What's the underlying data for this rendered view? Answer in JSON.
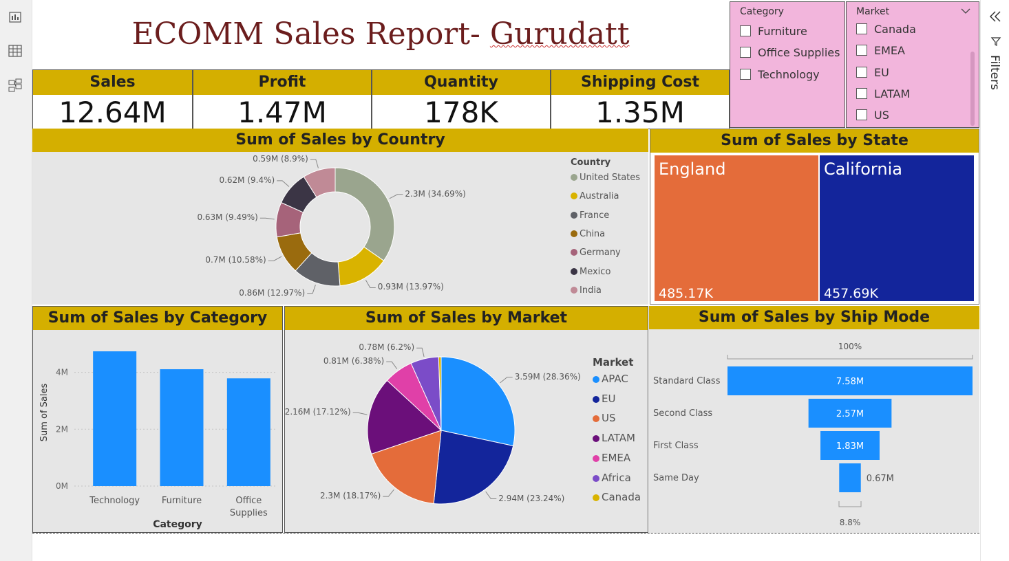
{
  "title": {
    "main": "ECOMM Sales Report- ",
    "name": "Gurudatt"
  },
  "kpis": [
    {
      "label": "Sales",
      "value": "12.64M"
    },
    {
      "label": "Profit",
      "value": "1.47M"
    },
    {
      "label": "Quantity",
      "value": "178K"
    },
    {
      "label": "Shipping Cost",
      "value": "1.35M"
    }
  ],
  "category_slicer": {
    "label": "Category",
    "options": [
      "Furniture",
      "Office Supplies",
      "Technology"
    ]
  },
  "market_slicer": {
    "label": "Market",
    "options": [
      "Canada",
      "EMEA",
      "EU",
      "LATAM",
      "US"
    ]
  },
  "right_rail": {
    "filters_label": "Filters"
  },
  "icons": {
    "left_rail": [
      "report-view-icon",
      "data-view-icon",
      "model-view-icon"
    ],
    "right_rail": [
      "collapse-chevrons-icon",
      "filter-funnel-icon"
    ]
  },
  "chart_data": [
    {
      "type": "pie",
      "title": "Sum of Sales by Country",
      "legend_title": "Country",
      "legend_position": "right",
      "donut": true,
      "categories": [
        "United States",
        "Australia",
        "France",
        "China",
        "Germany",
        "Mexico",
        "India"
      ],
      "values": [
        2.3,
        0.93,
        0.86,
        0.7,
        0.63,
        0.62,
        0.59
      ],
      "labels": [
        "2.3M (34.69%)",
        "0.93M (13.97%)",
        "0.86M (12.97%)",
        "0.7M (10.58%)",
        "0.63M (9.49%)",
        "0.62M (9.4%)",
        "0.59M (8.9%)"
      ],
      "colors": [
        "#9aa58e",
        "#d9b300",
        "#5f6167",
        "#9a6b0e",
        "#a6637a",
        "#3b3545",
        "#c08a96"
      ]
    },
    {
      "type": "treemap",
      "title": "Sum of Sales by State",
      "categories": [
        "England",
        "California"
      ],
      "labels": [
        "485.17K",
        "457.69K"
      ],
      "values": [
        485.17,
        457.69
      ],
      "colors": [
        "#e46c3a",
        "#13259b"
      ]
    },
    {
      "type": "bar",
      "title": "Sum of Sales by Category",
      "xlabel": "Category",
      "ylabel": "Sum of Sales",
      "categories": [
        "Technology",
        "Furniture",
        "Office Supplies"
      ],
      "values": [
        4.74,
        4.11,
        3.79
      ],
      "ylim": [
        0,
        5.2
      ],
      "yticks": [
        "0M",
        "2M",
        "4M"
      ],
      "grid": true,
      "color": "#1a8fff"
    },
    {
      "type": "pie",
      "title": "Sum of Sales by Market",
      "legend_title": "Market",
      "legend_position": "right",
      "categories": [
        "APAC",
        "EU",
        "US",
        "LATAM",
        "EMEA",
        "Africa",
        "Canada"
      ],
      "values": [
        3.59,
        2.94,
        2.3,
        2.16,
        0.81,
        0.78,
        0.07
      ],
      "labels": [
        "3.59M (28.36%)",
        "2.94M (23.24%)",
        "2.3M (18.17%)",
        "2.16M (17.12%)",
        "0.81M (6.38%)",
        "0.78M (6.2%)",
        ""
      ],
      "colors": [
        "#1a8fff",
        "#13259b",
        "#e46c3a",
        "#6b0f7a",
        "#e040a8",
        "#7b4cc8",
        "#d9b300"
      ]
    },
    {
      "type": "funnel",
      "title": "Sum of Sales by Ship Mode",
      "categories": [
        "Standard Class",
        "Second Class",
        "First Class",
        "Same Day"
      ],
      "values": [
        7.58,
        2.57,
        1.83,
        0.67
      ],
      "labels": [
        "7.58M",
        "2.57M",
        "1.83M",
        "0.67M"
      ],
      "top_percent": "100%",
      "bottom_percent": "8.8%",
      "color": "#1a8fff"
    }
  ]
}
